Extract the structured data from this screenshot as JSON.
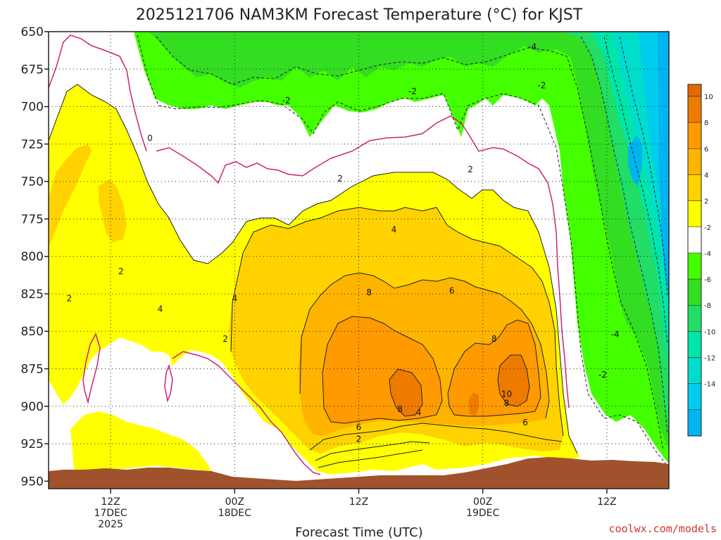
{
  "chart_data": {
    "type": "heatmap",
    "title": "2025121706 NAM3KM Forecast Temperature (°C) for KJST",
    "xlabel": "Forecast Time (UTC)",
    "ylabel": "",
    "y_axis": {
      "name": "pressure_hPa",
      "ticks": [
        650,
        675,
        700,
        725,
        750,
        775,
        800,
        825,
        850,
        875,
        900,
        925,
        950
      ],
      "range": [
        650,
        955
      ]
    },
    "x_axis": {
      "range_hours": [
        0,
        60
      ],
      "ticks": [
        {
          "hour": 6,
          "lines": [
            "12Z",
            "17DEC",
            "2025"
          ]
        },
        {
          "hour": 18,
          "lines": [
            "00Z",
            "18DEC"
          ]
        },
        {
          "hour": 30,
          "lines": [
            "12Z"
          ]
        },
        {
          "hour": 42,
          "lines": [
            "00Z",
            "19DEC"
          ]
        },
        {
          "hour": 54,
          "lines": [
            "12Z"
          ]
        }
      ]
    },
    "colorbar": {
      "bins": [
        {
          "label": "10",
          "color": "#ee7a00"
        },
        {
          "label": "8",
          "color": "#ff9a00"
        },
        {
          "label": "6",
          "color": "#ffb400"
        },
        {
          "label": "4",
          "color": "#ffd200"
        },
        {
          "label": "2",
          "color": "#ffff00"
        },
        {
          "label": "-2",
          "color": "#ffffff"
        },
        {
          "label": "-4",
          "color": "#44ff00"
        },
        {
          "label": "-6",
          "color": "#33dd22"
        },
        {
          "label": "-8",
          "color": "#22dd66"
        },
        {
          "label": "-10",
          "color": "#00e6a8"
        },
        {
          "label": "-12",
          "color": "#00ddcc"
        },
        {
          "label": "-14",
          "color": "#00ccee"
        },
        {
          "label": "",
          "color": "#00b4f0"
        }
      ],
      "top_color": "#e06a00"
    },
    "contour_labels": [
      {
        "t": "0",
        "hour": 9.8,
        "p": 721
      },
      {
        "t": "-2",
        "hour": 23.0,
        "p": 696
      },
      {
        "t": "-2",
        "hour": 35.2,
        "p": 690
      },
      {
        "t": "-2",
        "hour": 47.7,
        "p": 686
      },
      {
        "t": "-4",
        "hour": 46.8,
        "p": 660
      },
      {
        "t": "2",
        "hour": 28.2,
        "p": 748
      },
      {
        "t": "2",
        "hour": 40.8,
        "p": 742
      },
      {
        "t": "4",
        "hour": 33.4,
        "p": 782
      },
      {
        "t": "2",
        "hour": 7.0,
        "p": 810
      },
      {
        "t": "2",
        "hour": 2.0,
        "p": 828
      },
      {
        "t": "4",
        "hour": 10.8,
        "p": 835
      },
      {
        "t": "4",
        "hour": 18.0,
        "p": 828
      },
      {
        "t": "2",
        "hour": 17.1,
        "p": 855
      },
      {
        "t": "8",
        "hour": 31.0,
        "p": 824
      },
      {
        "t": "6",
        "hour": 39.0,
        "p": 823
      },
      {
        "t": "8",
        "hour": 43.1,
        "p": 855
      },
      {
        "t": "10",
        "hour": 44.3,
        "p": 892
      },
      {
        "t": "8",
        "hour": 44.3,
        "p": 898
      },
      {
        "t": "6",
        "hour": 46.1,
        "p": 911
      },
      {
        "t": "8",
        "hour": 34.0,
        "p": 902
      },
      {
        "t": "4",
        "hour": 35.8,
        "p": 904
      },
      {
        "t": "6",
        "hour": 30.0,
        "p": 914
      },
      {
        "t": "2",
        "hour": 30.0,
        "p": 922
      },
      {
        "t": "-4",
        "hour": 54.8,
        "p": 852
      },
      {
        "t": "-2",
        "hour": 53.6,
        "p": 879
      }
    ],
    "surface_color": "#a0522d"
  },
  "credit": "coolwx.com/models"
}
